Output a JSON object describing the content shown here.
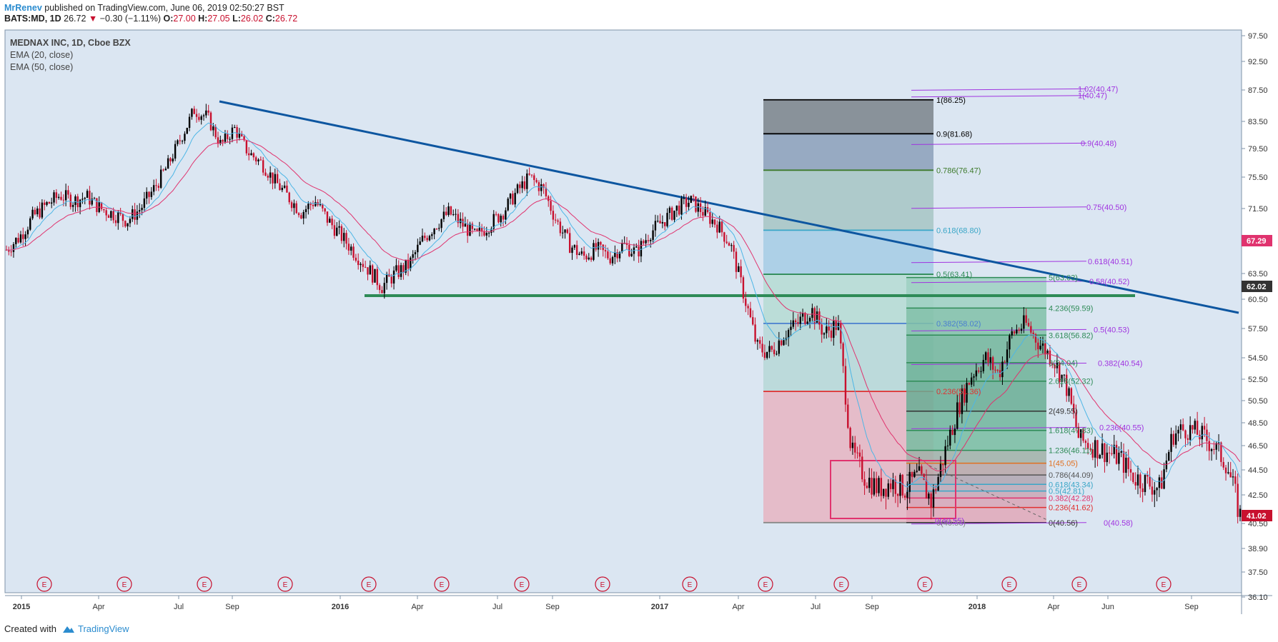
{
  "header": {
    "author": "MrRenev",
    "published": " published on TradingView.com, June 06, 2019 02:50:27 BST",
    "symbol": "BATS:MD, 1D",
    "last": "26.72",
    "change": "−0.30 (−1.11%)",
    "o_label": "O:",
    "o": "27.00",
    "h_label": "H:",
    "h": "27.05",
    "l_label": "L:",
    "l": "26.02",
    "c_label": "C:",
    "c": "26.72"
  },
  "legend": {
    "title": "MEDNAX INC, 1D, Cboe BZX",
    "ema20": "EMA (20, close)",
    "ema50": "EMA (50, close)"
  },
  "footer": {
    "created": "Created with",
    "brand": "TradingView"
  },
  "colors": {
    "bg": "#dbe6f2",
    "up": "#000000",
    "down": "#c8102e",
    "ema20": "#4db6e6",
    "ema50": "#e0336e",
    "trend": "#0d56a0",
    "support": "#2e8b57"
  },
  "chart_data": {
    "type": "candlestick",
    "y_ticks": [
      "97.50",
      "92.50",
      "87.50",
      "83.50",
      "79.50",
      "75.50",
      "71.50",
      "67.50",
      "63.50",
      "60.50",
      "57.50",
      "54.50",
      "52.50",
      "50.50",
      "48.50",
      "46.50",
      "44.50",
      "42.50",
      "40.50",
      "38.90",
      "37.50",
      "36.10"
    ],
    "x_ticks": [
      "2015",
      "Apr",
      "Jul",
      "Sep",
      "2016",
      "Apr",
      "Jul",
      "Sep",
      "2017",
      "Apr",
      "Jul",
      "Sep",
      "2018",
      "Apr",
      "Jun",
      "Sep"
    ],
    "price_badges": [
      {
        "value": "67.29",
        "color": "#e0336e"
      },
      {
        "value": "62.02",
        "color": "#333333"
      },
      {
        "value": "41.02",
        "color": "#c8102e"
      }
    ],
    "earnings_marker": "E",
    "earnings_count": 15,
    "closes": [
      66.4,
      68.0,
      70.5,
      72.0,
      73.2,
      72.5,
      73.0,
      71.5,
      70.8,
      70.0,
      71.5,
      74.0,
      77.0,
      81.0,
      85.0,
      84.0,
      80.0,
      82.5,
      79.0,
      77.5,
      75.0,
      73.0,
      71.0,
      72.5,
      70.0,
      68.0,
      66.0,
      64.0,
      62.0,
      63.5,
      64.5,
      67.5,
      69.5,
      71.0,
      69.5,
      68.0,
      69.5,
      71.0,
      73.5,
      75.5,
      74.0,
      70.0,
      67.0,
      65.5,
      66.5,
      65.5,
      67.0,
      66.0,
      68.5,
      70.0,
      71.5,
      72.5,
      71.0,
      69.5,
      67.0,
      61.0,
      55.5,
      55.0,
      57.0,
      58.0,
      59.5,
      57.0,
      58.0,
      46.0,
      44.0,
      43.0,
      43.5,
      43.0,
      44.0,
      42.0,
      46.0,
      50.0,
      53.0,
      54.5,
      53.0,
      57.0,
      58.0,
      56.0,
      54.5,
      52.0,
      47.0,
      46.5,
      46.0,
      45.5,
      44.0,
      43.5,
      43.0,
      47.5,
      48.0,
      47.5,
      46.5,
      45.0,
      41.0
    ],
    "fib_left": [
      {
        "label": "1(86.25)",
        "color": "#000000"
      },
      {
        "label": "0.9(81.68)",
        "color": "#000000"
      },
      {
        "label": "0.786(76.47)",
        "color": "#3d7a2b"
      },
      {
        "label": "0.618(68.80)",
        "color": "#3aa6c7"
      },
      {
        "label": "0.5(63.41)",
        "color": "#2e8b57"
      },
      {
        "label": "0.382(58.02)",
        "color": "#4a7fd0"
      },
      {
        "label": "0.236(51.36)",
        "color": "#e03030"
      },
      {
        "label": "0(40.56)",
        "color": "#888888"
      }
    ],
    "fib_ext": [
      {
        "label": "5(63.03)",
        "color": "#2e8b57"
      },
      {
        "label": "4.236(59.59)",
        "color": "#2e8b57"
      },
      {
        "label": "3.618(56.82)",
        "color": "#2e8b57"
      },
      {
        "label": "3(54.04)",
        "color": "#2e8b57"
      },
      {
        "label": "2.618(52.32)",
        "color": "#2e8b57"
      },
      {
        "label": "2(49.55)",
        "color": "#333333"
      },
      {
        "label": "1.618(47.83)",
        "color": "#2e8b57"
      },
      {
        "label": "1.236(46.11)",
        "color": "#2e8b57"
      },
      {
        "label": "1(45.05)",
        "color": "#e07020"
      },
      {
        "label": "0.786(44.09)",
        "color": "#555555"
      },
      {
        "label": "0.618(43.34)",
        "color": "#3aa6c7"
      },
      {
        "label": "0.5(42.81)",
        "color": "#3aa6c7"
      },
      {
        "label": "0.382(42.28)",
        "color": "#e0336e"
      },
      {
        "label": "0.236(41.62)",
        "color": "#e03030"
      },
      {
        "label": "0(40.56)",
        "color": "#333333"
      }
    ],
    "fib_purple": [
      {
        "label": "1.02(40.47)"
      },
      {
        "label": "1(40.47)"
      },
      {
        "label": "0.9(40.48)"
      },
      {
        "label": "0.75(40.50)"
      },
      {
        "label": "0.618(40.51)"
      },
      {
        "label": "0.58(40.52)"
      },
      {
        "label": "0.5(40.53)"
      },
      {
        "label": "0.382(40.54)"
      },
      {
        "label": "0.236(40.55)"
      },
      {
        "label": "0(40.58)"
      }
    ],
    "purple_small": "0(40.55)"
  }
}
